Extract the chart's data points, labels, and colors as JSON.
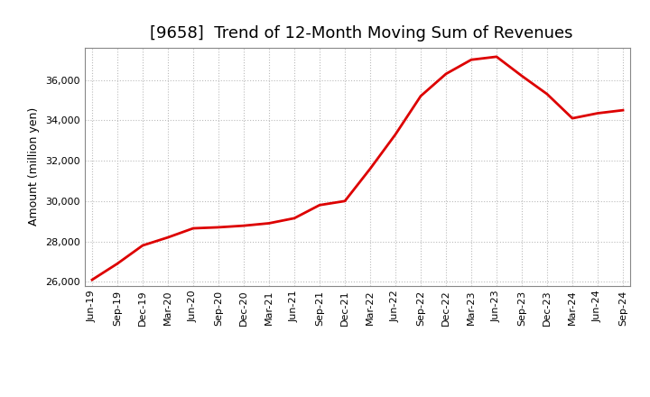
{
  "title": "[9658]  Trend of 12-Month Moving Sum of Revenues",
  "ylabel": "Amount (million yen)",
  "line_color": "#dd0000",
  "line_width": 2.0,
  "background_color": "#ffffff",
  "plot_bg_color": "#ffffff",
  "grid_color": "#bbbbbb",
  "tick_labels": [
    "Jun-19",
    "Sep-19",
    "Dec-19",
    "Mar-20",
    "Jun-20",
    "Sep-20",
    "Dec-20",
    "Mar-21",
    "Jun-21",
    "Sep-21",
    "Dec-21",
    "Mar-22",
    "Jun-22",
    "Sep-22",
    "Dec-22",
    "Mar-23",
    "Jun-23",
    "Sep-23",
    "Dec-23",
    "Mar-24",
    "Jun-24",
    "Sep-24"
  ],
  "values": [
    26100,
    26900,
    27800,
    28200,
    28650,
    28700,
    28780,
    28900,
    29150,
    29800,
    30000,
    31600,
    33300,
    35200,
    36300,
    37000,
    37150,
    36200,
    35300,
    34100,
    34350,
    34500
  ],
  "ylim": [
    25800,
    37600
  ],
  "yticks": [
    26000,
    28000,
    30000,
    32000,
    34000,
    36000
  ],
  "title_fontsize": 13,
  "axis_fontsize": 9,
  "tick_fontsize": 8
}
